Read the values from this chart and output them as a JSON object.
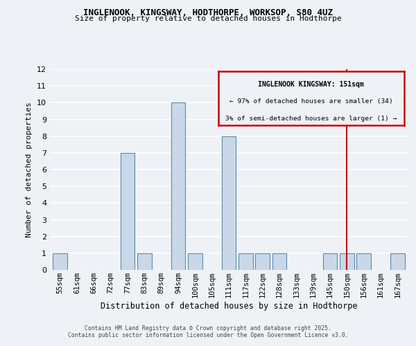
{
  "title": "INGLENOOK, KINGSWAY, HODTHORPE, WORKSOP, S80 4UZ",
  "subtitle": "Size of property relative to detached houses in Hodthorpe",
  "xlabel": "Distribution of detached houses by size in Hodthorpe",
  "ylabel": "Number of detached properties",
  "bar_labels": [
    "55sqm",
    "61sqm",
    "66sqm",
    "72sqm",
    "77sqm",
    "83sqm",
    "89sqm",
    "94sqm",
    "100sqm",
    "105sqm",
    "111sqm",
    "117sqm",
    "122sqm",
    "128sqm",
    "133sqm",
    "139sqm",
    "145sqm",
    "150sqm",
    "156sqm",
    "161sqm",
    "167sqm"
  ],
  "bar_values": [
    1,
    0,
    0,
    0,
    7,
    1,
    0,
    10,
    1,
    0,
    8,
    1,
    1,
    1,
    0,
    0,
    1,
    1,
    1,
    0,
    1
  ],
  "bar_color": "#c8d8e8",
  "bar_edge_color": "#5a8aa8",
  "ylim": [
    0,
    12
  ],
  "yticks": [
    0,
    1,
    2,
    3,
    4,
    5,
    6,
    7,
    8,
    9,
    10,
    11,
    12
  ],
  "vline_x_idx": 17,
  "vline_color": "#cc0000",
  "annotation_title": "INGLENOOK KINGSWAY: 151sqm",
  "annotation_line1": "← 97% of detached houses are smaller (34)",
  "annotation_line2": "3% of semi-detached houses are larger (1) →",
  "annotation_box_color": "#cc0000",
  "bg_color": "#eef2f7",
  "grid_color": "#ffffff",
  "footer1": "Contains HM Land Registry data © Crown copyright and database right 2025.",
  "footer2": "Contains public sector information licensed under the Open Government Licence v3.0."
}
